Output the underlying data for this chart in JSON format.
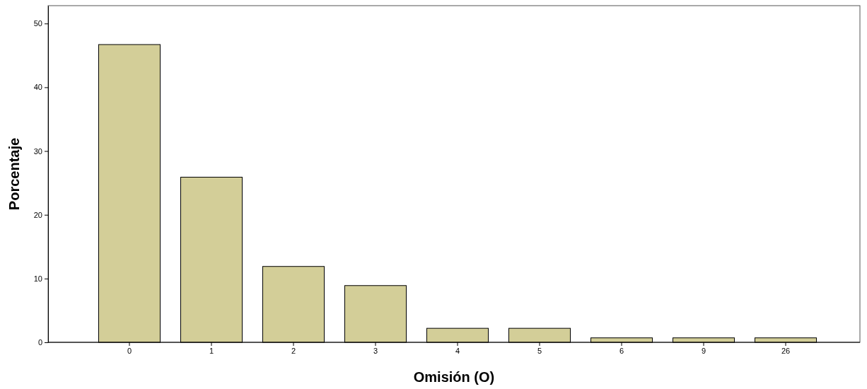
{
  "chart_data": {
    "type": "bar",
    "xlabel": "Omisión (O)",
    "ylabel": "Porcentaje",
    "categories": [
      "0",
      "1",
      "2",
      "3",
      "4",
      "5",
      "6",
      "9",
      "26"
    ],
    "values": [
      46.7,
      25.9,
      11.9,
      8.9,
      2.2,
      2.2,
      0.7,
      0.7,
      0.7
    ],
    "color": "#d3ce98",
    "ylim": [
      0,
      52.8
    ],
    "yticks": [
      0,
      10,
      20,
      30,
      40,
      50
    ],
    "grid": false
  }
}
